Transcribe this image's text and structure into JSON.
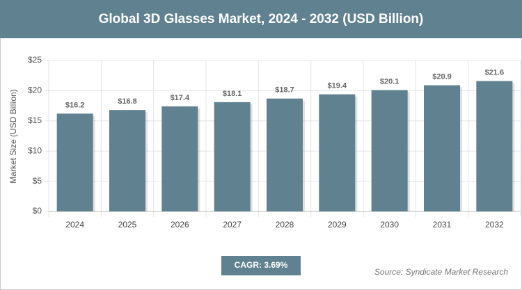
{
  "chart_data": {
    "type": "bar",
    "title": "Global 3D Glasses Market, 2024 - 2032 (USD Billion)",
    "y_label": "Market Size (USD Billion)",
    "categories": [
      "2024",
      "2025",
      "2026",
      "2027",
      "2028",
      "2029",
      "2030",
      "2031",
      "2032"
    ],
    "values": [
      16.2,
      16.8,
      17.4,
      18.1,
      18.7,
      19.4,
      20.1,
      20.9,
      21.6
    ],
    "value_labels": [
      "$16.2",
      "$16.8",
      "$17.4",
      "$18.1",
      "$18.7",
      "$19.4",
      "$20.1",
      "$20.9",
      "$21.6"
    ],
    "color": "#5f8190",
    "ylim": [
      0,
      25
    ],
    "yticks": [
      {
        "value": 0,
        "label": "$0"
      },
      {
        "value": 5,
        "label": "$5"
      },
      {
        "value": 10,
        "label": "$10"
      },
      {
        "value": 15,
        "label": "$15"
      },
      {
        "value": 20,
        "label": "$20"
      },
      {
        "value": 25,
        "label": "$25"
      }
    ],
    "grid": true,
    "annotation": "CAGR: 3.69%",
    "source": "Source: Syndicate Market Research"
  }
}
